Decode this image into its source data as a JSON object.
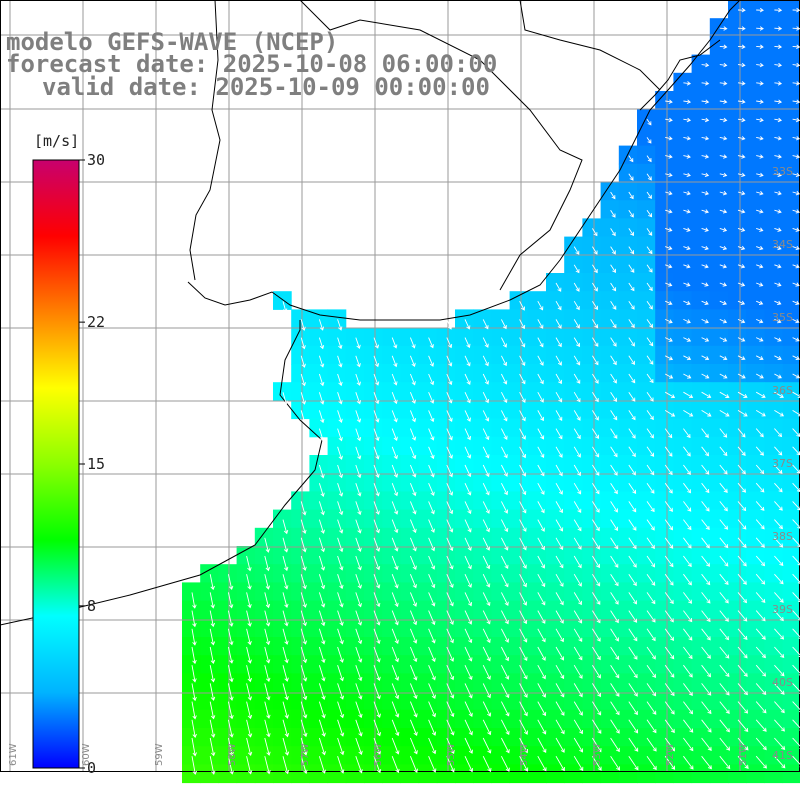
{
  "titles": {
    "line1": "modelo GEFS-WAVE (NCEP)",
    "line2": "forecast date: 2025-10-08 06:00:00",
    "line3": "valid date: 2025-10-09 00:00:00"
  },
  "colorbar": {
    "unit": "[m/s]",
    "tick_labels": [
      "30",
      "22",
      "15",
      "8",
      "0"
    ],
    "tick_values": [
      30,
      22,
      15,
      8,
      0
    ],
    "min": 0,
    "max": 30,
    "stops": [
      "#0000ff",
      "#00b4ff",
      "#00ffff",
      "#00ff00",
      "#8cff00",
      "#ffff00",
      "#ff8000",
      "#ff0000",
      "#c8006e"
    ]
  },
  "lat_labels": [
    "33S",
    "34S",
    "35S",
    "36S",
    "37S",
    "38S",
    "39S",
    "40S",
    "41S"
  ],
  "lon_labels": [
    "61W",
    "60W",
    "59W",
    "58W",
    "57W",
    "56W",
    "55W",
    "54W",
    "53W",
    "52W",
    "51W"
  ],
  "chart_data": {
    "type": "heatmap",
    "variable": "wind speed with direction vectors",
    "value_range": [
      0,
      30
    ],
    "speed_summary_ms": {
      "northeast_ocean": 4,
      "central_estuary": 6,
      "southeast_offshore": 8,
      "south_coast": 11,
      "southwest_corner": 13
    }
  }
}
